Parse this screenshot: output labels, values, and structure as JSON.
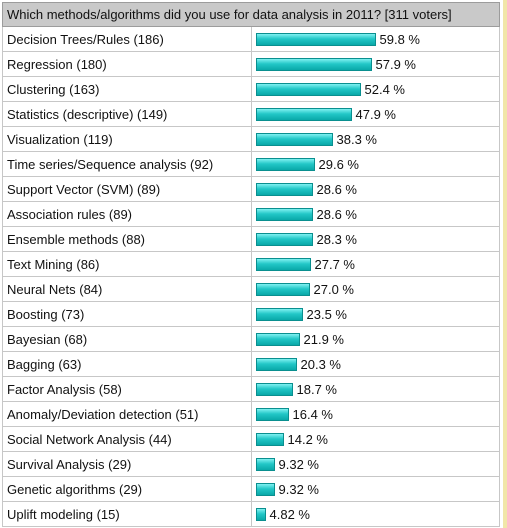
{
  "poll": {
    "question": "Which methods/algorithms did you use for data analysis in 2011? [311 voters]"
  },
  "chart_data": {
    "type": "bar",
    "title": "Which methods/algorithms did you use for data analysis in 2011? [311 voters]",
    "categories": [
      "Decision Trees/Rules (186)",
      "Regression (180)",
      "Clustering (163)",
      "Statistics (descriptive) (149)",
      "Visualization (119)",
      "Time series/Sequence analysis (92)",
      "Support Vector (SVM) (89)",
      "Association rules (89)",
      "Ensemble methods (88)",
      "Text Mining (86)",
      "Neural Nets (84)",
      "Boosting (73)",
      "Bayesian (68)",
      "Bagging (63)",
      "Factor Analysis (58)",
      "Anomaly/Deviation detection (51)",
      "Social Network Analysis (44)",
      "Survival Analysis (29)",
      "Genetic algorithms (29)",
      "Uplift modeling (15)"
    ],
    "values": [
      59.8,
      57.9,
      52.4,
      47.9,
      38.3,
      29.6,
      28.6,
      28.6,
      28.3,
      27.7,
      27.0,
      23.5,
      21.9,
      20.3,
      18.7,
      16.4,
      14.2,
      9.32,
      9.32,
      4.82
    ],
    "value_labels": [
      "59.8 %",
      "57.9 %",
      "52.4 %",
      "47.9 %",
      "38.3 %",
      "29.6 %",
      "28.6 %",
      "28.6 %",
      "28.3 %",
      "27.7 %",
      "27.0 %",
      "23.5 %",
      "21.9 %",
      "20.3 %",
      "18.7 %",
      "16.4 %",
      "14.2 %",
      "9.32 %",
      "9.32 %",
      "4.82 %"
    ],
    "orientation": "horizontal",
    "xlim": [
      0,
      100
    ],
    "grid": false,
    "bar_color": "#22c7c7"
  }
}
